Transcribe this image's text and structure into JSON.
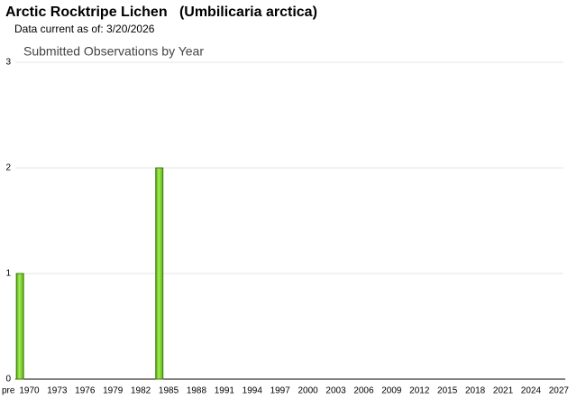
{
  "chart_data": {
    "type": "bar",
    "title": "Arctic Rocktripe Lichen   (Umbilicaria arctica)",
    "subtitle": "Data current as of: 3/20/2026",
    "chart_title": "Submitted Observations by Year",
    "categories": [
      "pre",
      "1970",
      null,
      null,
      "1973",
      null,
      null,
      "1976",
      null,
      null,
      "1979",
      null,
      null,
      "1982",
      null,
      null,
      "1985",
      null,
      null,
      "1988",
      null,
      null,
      "1991",
      null,
      null,
      "1994",
      null,
      null,
      "1997",
      null,
      null,
      "2000",
      null,
      null,
      "2003",
      null,
      null,
      "2006",
      null,
      null,
      "2009",
      null,
      null,
      "2012",
      null,
      null,
      "2015",
      null,
      null,
      "2018",
      null,
      null,
      "2021",
      null,
      null,
      "2024",
      null,
      null,
      "2027"
    ],
    "values": [
      1,
      0,
      0,
      0,
      0,
      0,
      0,
      0,
      0,
      0,
      0,
      0,
      0,
      0,
      0,
      2,
      0,
      0,
      0,
      0,
      0,
      0,
      0,
      0,
      0,
      0,
      0,
      0,
      0,
      0,
      0,
      0,
      0,
      0,
      0,
      0,
      0,
      0,
      0,
      0,
      0,
      0,
      0,
      0,
      0,
      0,
      0,
      0,
      0,
      0,
      0,
      0,
      0,
      0,
      0,
      0,
      0,
      0,
      0
    ],
    "color": "#7ed321",
    "ylim": [
      0,
      3
    ],
    "yticks": [
      0,
      1,
      2,
      3
    ],
    "grid": true
  }
}
